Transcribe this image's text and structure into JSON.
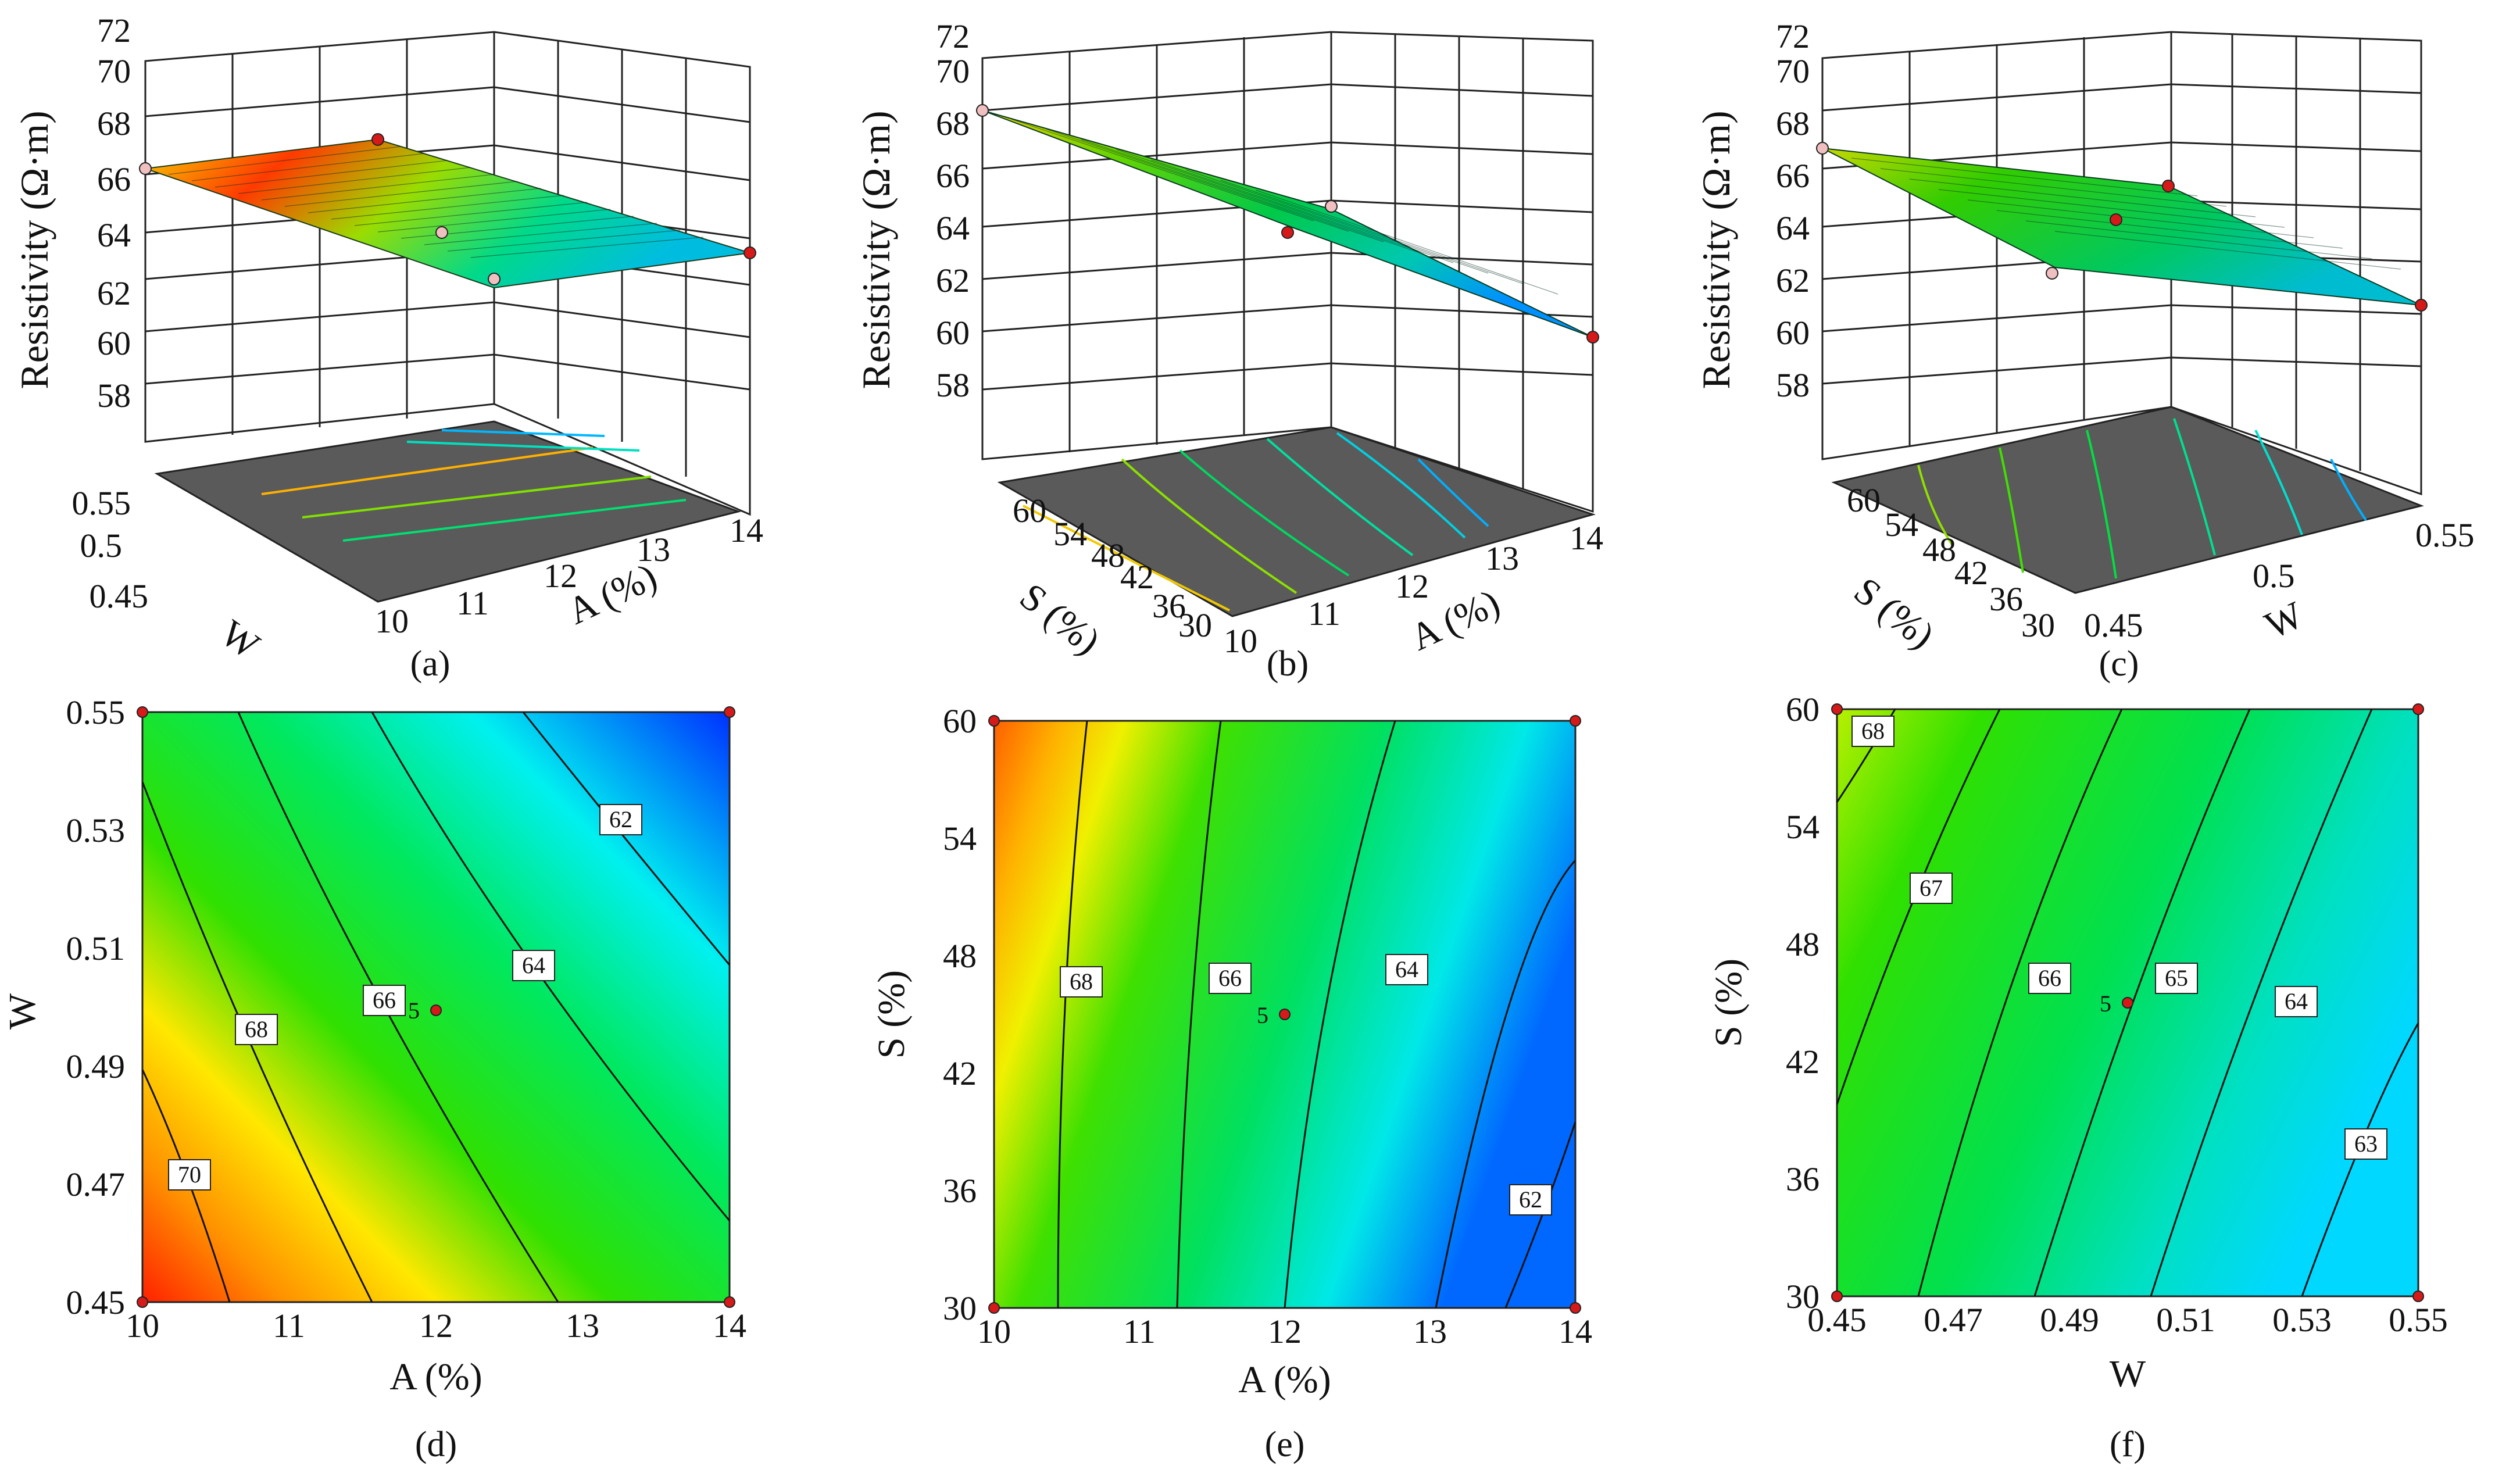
{
  "colors": {
    "surface_low": "#00a0ff",
    "surface_mid": "#00e000",
    "surface_high": "#ff2000",
    "floor": "#5a5a5a",
    "grid": "#222222",
    "design_point": "#d61a1a",
    "center_point": "#d61a1a"
  },
  "chart_data": [
    {
      "id": "a",
      "type": "surface",
      "caption": "(a)",
      "zlabel": "Resistivity (Ω·m)",
      "zticks": [
        "58",
        "60",
        "62",
        "64",
        "66",
        "68",
        "70",
        "72"
      ],
      "xlabel": "A (%)",
      "xticks": [
        "10",
        "11",
        "12",
        "13",
        "14"
      ],
      "ylabel": "W",
      "yticks": [
        "0.45",
        "0.5",
        "0.55"
      ]
    },
    {
      "id": "b",
      "type": "surface",
      "caption": "(b)",
      "zlabel": "Resistivity (Ω·m)",
      "zticks": [
        "58",
        "60",
        "62",
        "64",
        "66",
        "68",
        "70",
        "72"
      ],
      "xlabel": "A (%)",
      "xticks": [
        "10",
        "11",
        "12",
        "13",
        "14"
      ],
      "ylabel": "S (%)",
      "yticks": [
        "30",
        "36",
        "42",
        "48",
        "54",
        "60"
      ]
    },
    {
      "id": "c",
      "type": "surface",
      "caption": "(c)",
      "zlabel": "Resistivity (Ω·m)",
      "zticks": [
        "58",
        "60",
        "62",
        "64",
        "66",
        "68",
        "70",
        "72"
      ],
      "xlabel": "W",
      "xticks": [
        "0.45",
        "0.5",
        "0.55"
      ],
      "ylabel": "S (%)",
      "yticks": [
        "30",
        "36",
        "42",
        "48",
        "54",
        "60"
      ]
    },
    {
      "id": "d",
      "type": "contour",
      "caption": "(d)",
      "xlabel": "A (%)",
      "xticks": [
        "10",
        "11",
        "12",
        "13",
        "14"
      ],
      "ylabel": "W",
      "yticks": [
        "0.45",
        "0.47",
        "0.49",
        "0.51",
        "0.53",
        "0.55"
      ],
      "xrange": [
        10,
        14
      ],
      "yrange": [
        0.45,
        0.55
      ],
      "contour_levels": [
        "70",
        "68",
        "66",
        "64",
        "62"
      ],
      "center_label": "5",
      "center": [
        12,
        0.5
      ]
    },
    {
      "id": "e",
      "type": "contour",
      "caption": "(e)",
      "xlabel": "A (%)",
      "xticks": [
        "10",
        "11",
        "12",
        "13",
        "14"
      ],
      "ylabel": "S (%)",
      "yticks": [
        "30",
        "36",
        "42",
        "48",
        "54",
        "60"
      ],
      "xrange": [
        10,
        14
      ],
      "yrange": [
        30,
        60
      ],
      "contour_levels": [
        "68",
        "66",
        "64",
        "62"
      ],
      "center_label": "5",
      "center": [
        12,
        45
      ]
    },
    {
      "id": "f",
      "type": "contour",
      "caption": "(f)",
      "xlabel": "W",
      "xticks": [
        "0.45",
        "0.47",
        "0.49",
        "0.51",
        "0.53",
        "0.55"
      ],
      "ylabel": "S (%)",
      "yticks": [
        "30",
        "36",
        "42",
        "48",
        "54",
        "60"
      ],
      "xrange": [
        0.45,
        0.55
      ],
      "yrange": [
        30,
        60
      ],
      "contour_levels": [
        "68",
        "67",
        "66",
        "65",
        "64",
        "63"
      ],
      "center_label": "5",
      "center": [
        0.5,
        45
      ]
    }
  ]
}
